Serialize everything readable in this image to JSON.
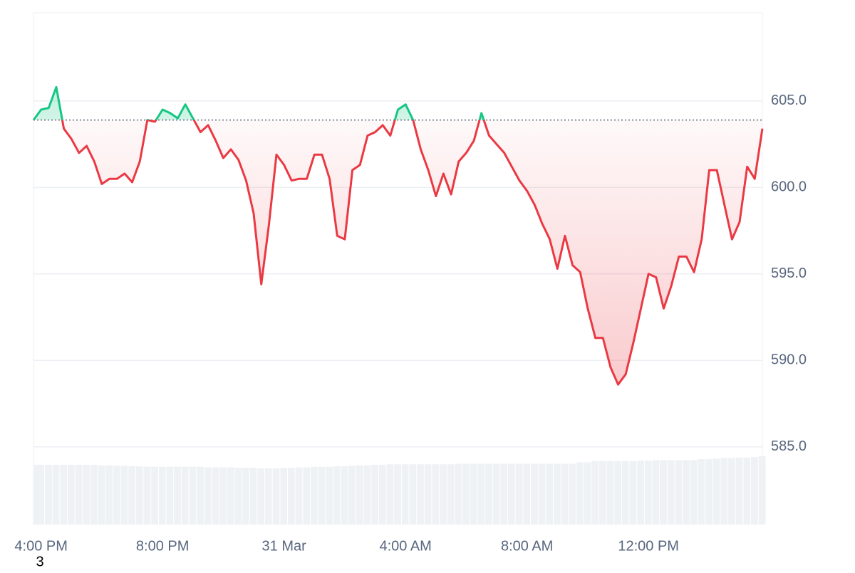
{
  "chart_data": {
    "type": "line",
    "categories": [
      null,
      "4:00 PM",
      null,
      null,
      null,
      null,
      null,
      null,
      null,
      null,
      null,
      null,
      null,
      null,
      null,
      null,
      null,
      "8:00 PM",
      null,
      null,
      null,
      null,
      null,
      null,
      null,
      null,
      null,
      null,
      null,
      null,
      null,
      null,
      null,
      "31 Mar",
      null,
      null,
      null,
      null,
      null,
      null,
      null,
      null,
      null,
      null,
      null,
      null,
      null,
      null,
      null,
      "4:00 AM",
      null,
      null,
      null,
      null,
      null,
      null,
      null,
      null,
      null,
      null,
      null,
      null,
      null,
      null,
      null,
      "8:00 AM",
      null,
      null,
      null,
      null,
      null,
      null,
      null,
      null,
      null,
      null,
      null,
      null,
      null,
      null,
      null,
      "12:00 PM",
      null,
      null,
      null,
      null,
      null,
      null,
      null,
      null,
      null,
      null,
      null,
      null,
      null,
      null,
      null
    ],
    "series": [
      {
        "up_color": "#16c784",
        "color": "#ea3943",
        "values": [
          603.9,
          604.5,
          604.6,
          605.8,
          603.4,
          602.8,
          602.0,
          602.4,
          601.5,
          600.2,
          600.5,
          600.5,
          600.8,
          600.3,
          601.5,
          603.9,
          603.8,
          604.5,
          604.3,
          604.0,
          604.8,
          604.0,
          603.2,
          603.6,
          602.7,
          601.7,
          602.2,
          601.6,
          600.4,
          598.5,
          594.4,
          597.8,
          601.9,
          601.3,
          600.4,
          600.5,
          600.5,
          601.9,
          601.9,
          600.5,
          597.2,
          597.0,
          601.0,
          601.3,
          603.0,
          603.2,
          603.6,
          603.0,
          604.5,
          604.8,
          603.9,
          602.2,
          601.0,
          599.5,
          600.8,
          599.6,
          601.5,
          602.0,
          602.7,
          604.3,
          603.0,
          602.5,
          602.0,
          601.2,
          600.4,
          599.8,
          599.0,
          597.9,
          597.0,
          595.3,
          597.2,
          595.5,
          595.1,
          593.0,
          591.3,
          591.3,
          589.6,
          588.6,
          589.2,
          591.0,
          593.0,
          595.0,
          594.8,
          593.0,
          594.3,
          596.0,
          596.0,
          595.1,
          597.0,
          601.0,
          601.0,
          599.0,
          597.0,
          598.0,
          601.2,
          600.5,
          603.4
        ]
      }
    ],
    "baseline": 603.9,
    "volume": {
      "color": "#eff2f5",
      "values": [
        11.7,
        11.7,
        11.7,
        11.7,
        11.7,
        11.7,
        11.7,
        11.7,
        11.7,
        11.6,
        11.6,
        11.5,
        11.5,
        11.4,
        11.4,
        11.3,
        11.3,
        11.3,
        11.3,
        11.3,
        11.3,
        11.3,
        11.3,
        11.2,
        11.2,
        11.2,
        11.2,
        11.1,
        11.1,
        11.1,
        11.0,
        11.0,
        11.0,
        11.1,
        11.1,
        11.2,
        11.2,
        11.3,
        11.3,
        11.3,
        11.4,
        11.4,
        11.5,
        11.6,
        11.6,
        11.7,
        11.7,
        11.8,
        11.8,
        11.8,
        11.8,
        11.8,
        11.8,
        11.8,
        11.8,
        11.8,
        11.9,
        11.9,
        11.9,
        11.9,
        11.9,
        11.9,
        11.9,
        11.9,
        11.9,
        11.9,
        11.9,
        11.9,
        11.9,
        11.9,
        11.9,
        11.9,
        12.2,
        12.2,
        12.4,
        12.4,
        12.4,
        12.4,
        12.4,
        12.4,
        12.5,
        12.5,
        12.6,
        12.6,
        12.6,
        12.6,
        12.6,
        12.6,
        12.8,
        12.8,
        12.9,
        13.0,
        13.0,
        13.1,
        13.1,
        13.2,
        13.4
      ]
    },
    "y2lim": [
      0,
      100
    ],
    "ylim": [
      580.5,
      610.1
    ],
    "yticks": [
      {
        "value": 585,
        "label": "585.0"
      },
      {
        "value": 590,
        "label": "590.0"
      },
      {
        "value": 595,
        "label": "595.0"
      },
      {
        "value": 600,
        "label": "600.0"
      },
      {
        "value": 605,
        "label": "605.0"
      }
    ],
    "grid": true,
    "annotation": "3"
  }
}
